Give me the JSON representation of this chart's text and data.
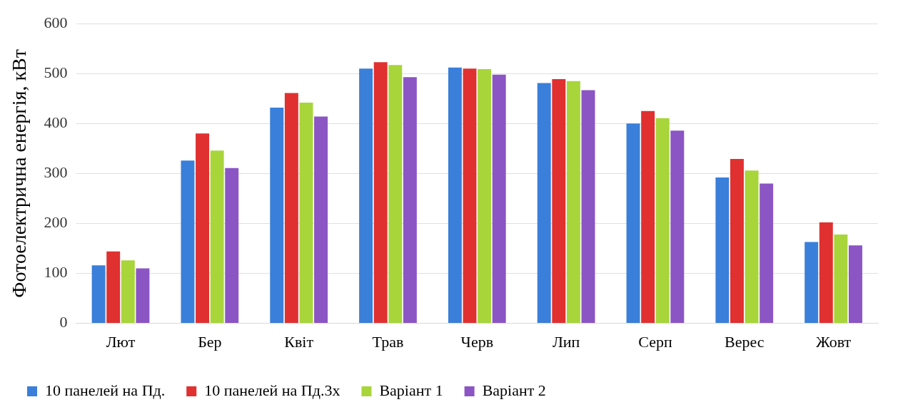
{
  "chart_data": {
    "type": "bar",
    "ylabel": "Фотоелектрична енергія, кВт",
    "categories": [
      "Лют",
      "Бер",
      "Квіт",
      "Трав",
      "Черв",
      "Лип",
      "Серп",
      "Верес",
      "Жовт"
    ],
    "series": [
      {
        "name": "10 панелей на Пд.",
        "color": "#3a7fd9",
        "values": [
          116,
          326,
          432,
          510,
          512,
          481,
          400,
          292,
          163
        ]
      },
      {
        "name": "10 панелей на Пд.3х",
        "color": "#e03030",
        "values": [
          144,
          380,
          461,
          523,
          510,
          489,
          425,
          329,
          202
        ]
      },
      {
        "name": "Варіант 1",
        "color": "#a8d53a",
        "values": [
          126,
          346,
          442,
          517,
          509,
          485,
          411,
          306,
          178
        ]
      },
      {
        "name": "Варіант 2",
        "color": "#8b55c4",
        "values": [
          110,
          311,
          414,
          493,
          498,
          467,
          386,
          280,
          156
        ]
      }
    ],
    "ylim": [
      0,
      600
    ],
    "yticks": [
      0,
      100,
      200,
      300,
      400,
      500,
      600
    ],
    "grid": "y",
    "legend": "bottom"
  }
}
